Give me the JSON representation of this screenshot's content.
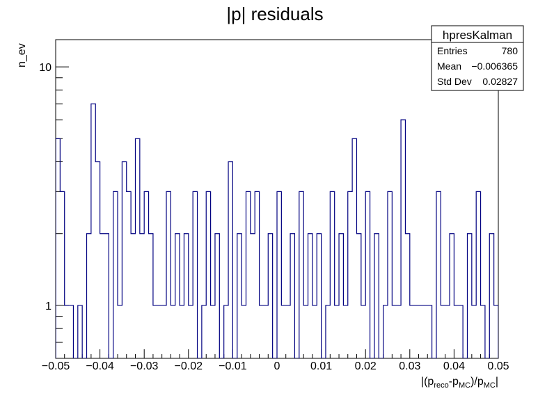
{
  "chart_data": {
    "type": "histogram",
    "title": "|p| residuals",
    "xlabel": {
      "parts": [
        "|(p",
        "reco",
        "-p",
        "MC",
        ")/p",
        "MC",
        "|"
      ]
    },
    "ylabel": "n_ev",
    "x_range": [
      -0.05,
      0.05
    ],
    "y_range": [
      0.6,
      13.0
    ],
    "y_log": true,
    "bins": 100,
    "x_ticks": [
      -0.05,
      -0.04,
      -0.03,
      -0.02,
      -0.01,
      0,
      0.01,
      0.02,
      0.03,
      0.04,
      0.05
    ],
    "x_tick_labels": [
      "−0.05",
      "−0.04",
      "−0.03",
      "−0.02",
      "−0.01",
      "0",
      "0.01",
      "0.02",
      "0.03",
      "0.04",
      "0.05"
    ],
    "y_tick_labels": [
      {
        "value": 1,
        "label": "1"
      },
      {
        "value": 10,
        "label": "10"
      }
    ],
    "counts": [
      5,
      3,
      1,
      1,
      0,
      1,
      0,
      2,
      7,
      4,
      2,
      2,
      0,
      3,
      1,
      4,
      3,
      2,
      5,
      2,
      3,
      2,
      1,
      1,
      1,
      3,
      1,
      2,
      1,
      2,
      1,
      3,
      0,
      1,
      3,
      1,
      2,
      0,
      1,
      4,
      0,
      2,
      1,
      3,
      2,
      3,
      1,
      1,
      2,
      0,
      3,
      1,
      1,
      2,
      0,
      3,
      1,
      2,
      1,
      2,
      0,
      1,
      3,
      1,
      2,
      1,
      3,
      5,
      2,
      1,
      3,
      0,
      2,
      0,
      1,
      3,
      1,
      1,
      6,
      2,
      1,
      1,
      1,
      1,
      1,
      0,
      3,
      1,
      1,
      2,
      1,
      1,
      0,
      2,
      1,
      3,
      1,
      0,
      2,
      1
    ],
    "line_color": "#000080",
    "stats": {
      "name": "hpresKalman",
      "rows": [
        {
          "label": "Entries",
          "value": "780"
        },
        {
          "label": "Mean",
          "value": "−0.006365"
        },
        {
          "label": "Std Dev",
          "value": "0.02827"
        }
      ]
    }
  }
}
